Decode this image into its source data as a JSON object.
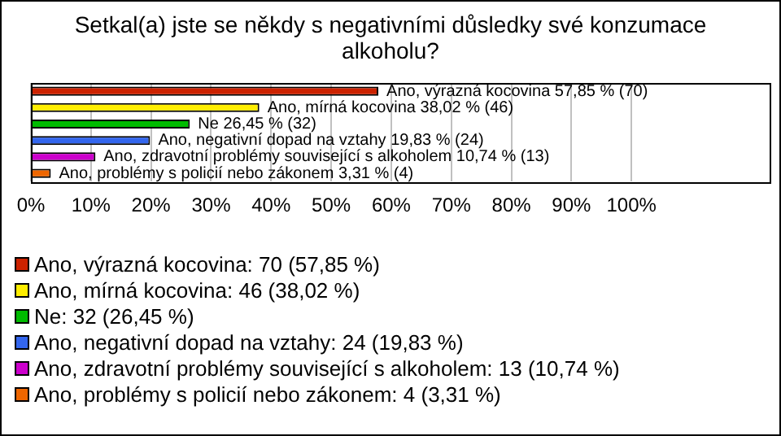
{
  "chart_data": {
    "type": "bar",
    "orientation": "horizontal",
    "title": "Setkal(a) jste se někdy s negativními důsledky své konzumace alkoholu?",
    "categories": [
      "Ano, výrazná kocovina",
      "Ano, mírná kocovina",
      "Ne",
      "Ano, negativní dopad na vztahy",
      "Ano, zdravotní problémy související s alkoholem",
      "Ano, problémy s policií nebo zákonem"
    ],
    "values": [
      57.85,
      38.02,
      26.45,
      19.83,
      10.74,
      3.31
    ],
    "colors": [
      "#cc2200",
      "#ffee00",
      "#00bb00",
      "#3366ee",
      "#cc00cc",
      "#ee6600"
    ],
    "value_labels": [
      "57,85 % (70)",
      "38,02 % (46)",
      "26,45 % (32)",
      "19,83 % (24)",
      "10,74 % (13)",
      "3,31 % (4)"
    ],
    "annotations": [
      "Ano, výrazná kocovina: 70 (57,85 %)",
      "Ano, mírná kocovina: 46 (38,02 %)",
      "Ne: 32 (26,45 %)",
      "Ano, negativní dopad na vztahy: 24 (19,83 %)",
      "Ano, zdravotní problémy související s alkoholem: 13 (10,74 %)",
      "Ano, problémy s policií nebo zákonem: 4 (3,31 %)"
    ],
    "xlim": [
      0,
      123
    ],
    "xticks": [
      {
        "value": 0,
        "label": "0%"
      },
      {
        "value": 10,
        "label": "10%"
      },
      {
        "value": 20,
        "label": "20%"
      },
      {
        "value": 30,
        "label": "30%"
      },
      {
        "value": 40,
        "label": "40%"
      },
      {
        "value": 50,
        "label": "50%"
      },
      {
        "value": 60,
        "label": "60%"
      },
      {
        "value": 70,
        "label": "70%"
      },
      {
        "value": 80,
        "label": "80%"
      },
      {
        "value": 90,
        "label": "90%"
      },
      {
        "value": 100,
        "label": "100%"
      }
    ],
    "grid": "x",
    "tick_labels": "x"
  }
}
